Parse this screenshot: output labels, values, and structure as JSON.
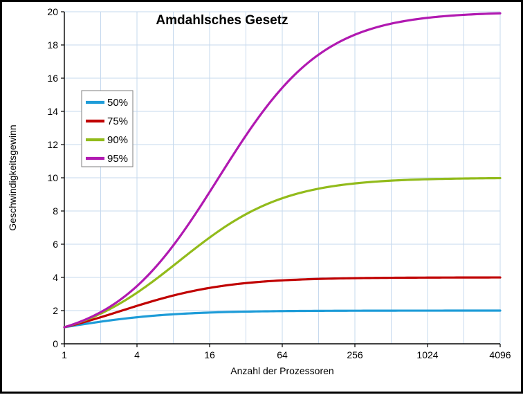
{
  "window": {
    "background": "#FFFFFF",
    "frame_border_color": "#000000"
  },
  "chart_data": {
    "type": "line",
    "title": "Amdahlsches Gesetz",
    "xlabel": "Anzahl der Prozessoren",
    "ylabel": "Geschwindigkeitsgewinn",
    "x_scale": "log2",
    "xlim": [
      1,
      4096
    ],
    "ylim": [
      0,
      20
    ],
    "x": [
      1,
      2,
      4,
      8,
      16,
      32,
      64,
      128,
      256,
      512,
      1024,
      2048,
      4096
    ],
    "x_tick_labels": [
      "1",
      "4",
      "16",
      "64",
      "256",
      "1024",
      "4096"
    ],
    "x_tick_values": [
      1,
      4,
      16,
      64,
      256,
      1024,
      4096
    ],
    "y_ticks": [
      0,
      2,
      4,
      6,
      8,
      10,
      12,
      14,
      16,
      18,
      20
    ],
    "grid": true,
    "grid_color": "#C6D9EE",
    "axis_color": "#000000",
    "legend_position": "upper-left-inside",
    "legend_border_color": "#7F7F7F",
    "series": [
      {
        "name": "50%",
        "parallel_fraction": 0.5,
        "color": "#1E9CD8",
        "values": [
          1,
          1.333,
          1.6,
          1.778,
          1.882,
          1.939,
          1.969,
          1.984,
          1.992,
          1.996,
          1.998,
          1.999,
          2.0
        ]
      },
      {
        "name": "75%",
        "parallel_fraction": 0.75,
        "color": "#C00000",
        "values": [
          1,
          1.6,
          2.286,
          2.909,
          3.368,
          3.657,
          3.82,
          3.908,
          3.953,
          3.977,
          3.988,
          3.994,
          3.997
        ]
      },
      {
        "name": "90%",
        "parallel_fraction": 0.9,
        "color": "#92BB1B",
        "values": [
          1,
          1.818,
          3.077,
          4.706,
          6.4,
          7.805,
          8.767,
          9.344,
          9.661,
          9.826,
          9.913,
          9.956,
          9.978
        ]
      },
      {
        "name": "95%",
        "parallel_fraction": 0.95,
        "color": "#B119B1",
        "values": [
          1,
          1.905,
          3.478,
          5.926,
          9.143,
          12.549,
          15.422,
          17.415,
          18.618,
          19.284,
          19.636,
          19.816,
          19.908
        ]
      }
    ]
  }
}
